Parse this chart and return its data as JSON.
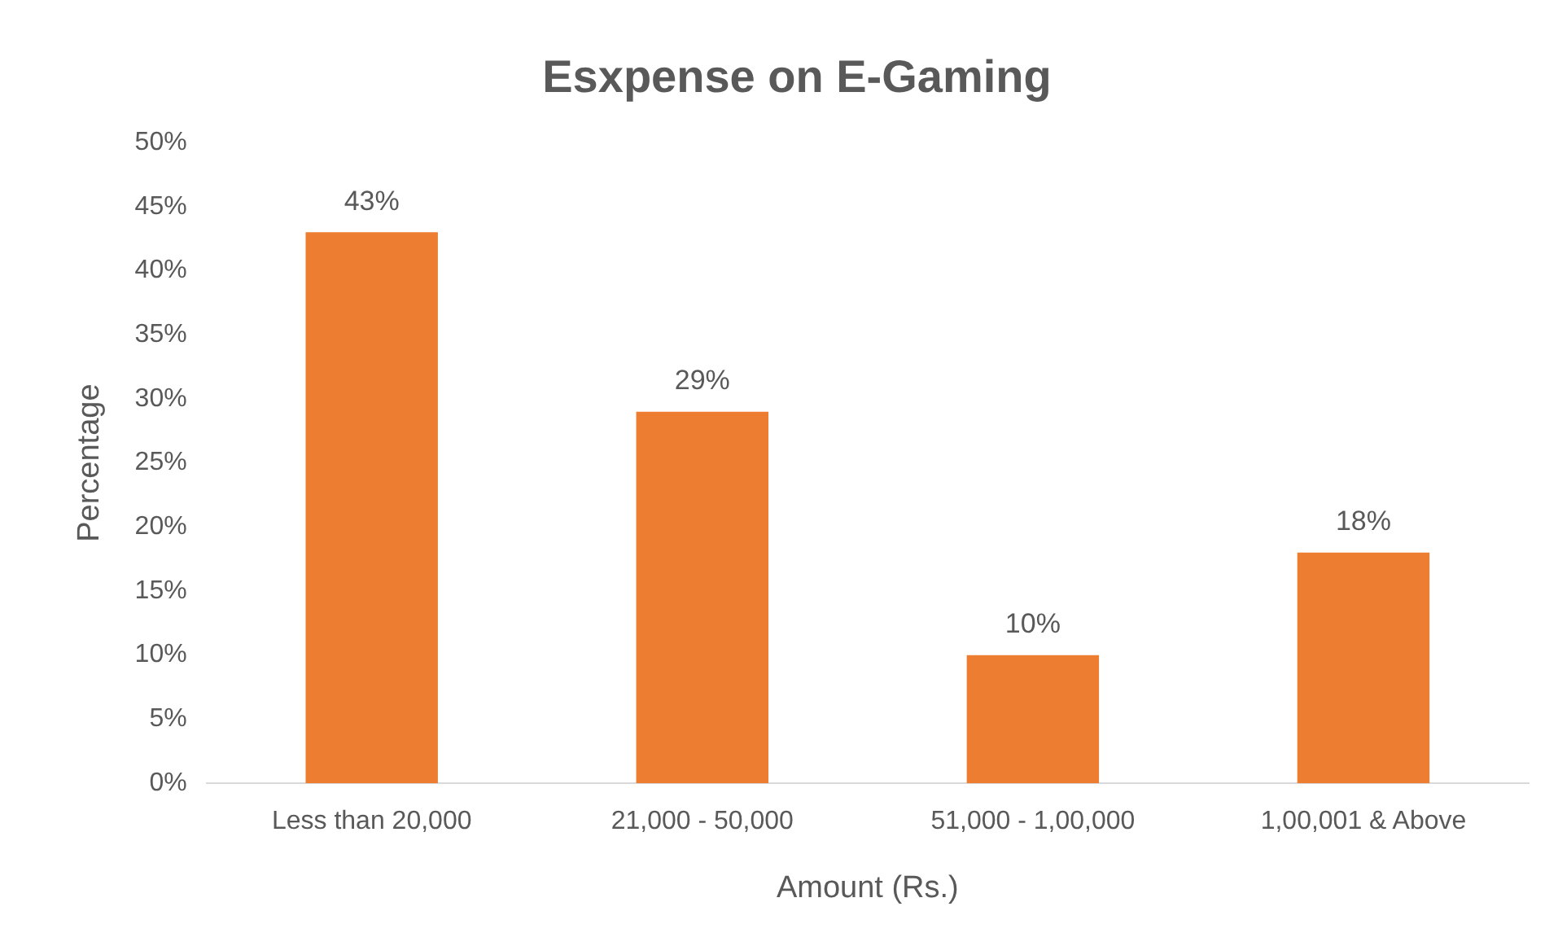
{
  "chart_data": {
    "type": "bar",
    "title": "Esxpense on E-Gaming",
    "xlabel": "Amount (Rs.)",
    "ylabel": "Percentage",
    "categories": [
      "Less than 20,000",
      "21,000 - 50,000",
      "51,000 - 1,00,000",
      "1,00,001 & Above"
    ],
    "values": [
      43,
      29,
      10,
      18
    ],
    "color": "#ed7d31",
    "value_labels": [
      "43%",
      "29%",
      "10%",
      "18%"
    ],
    "ylim": [
      0,
      50
    ],
    "yticks": [
      {
        "value": 0,
        "label": "0%"
      },
      {
        "value": 5,
        "label": "5%"
      },
      {
        "value": 10,
        "label": "10%"
      },
      {
        "value": 15,
        "label": "15%"
      },
      {
        "value": 20,
        "label": "20%"
      },
      {
        "value": 25,
        "label": "25%"
      },
      {
        "value": 30,
        "label": "30%"
      },
      {
        "value": 35,
        "label": "35%"
      },
      {
        "value": 40,
        "label": "40%"
      },
      {
        "value": 45,
        "label": "45%"
      },
      {
        "value": 50,
        "label": "50%"
      }
    ],
    "grid": false,
    "legend": false
  }
}
